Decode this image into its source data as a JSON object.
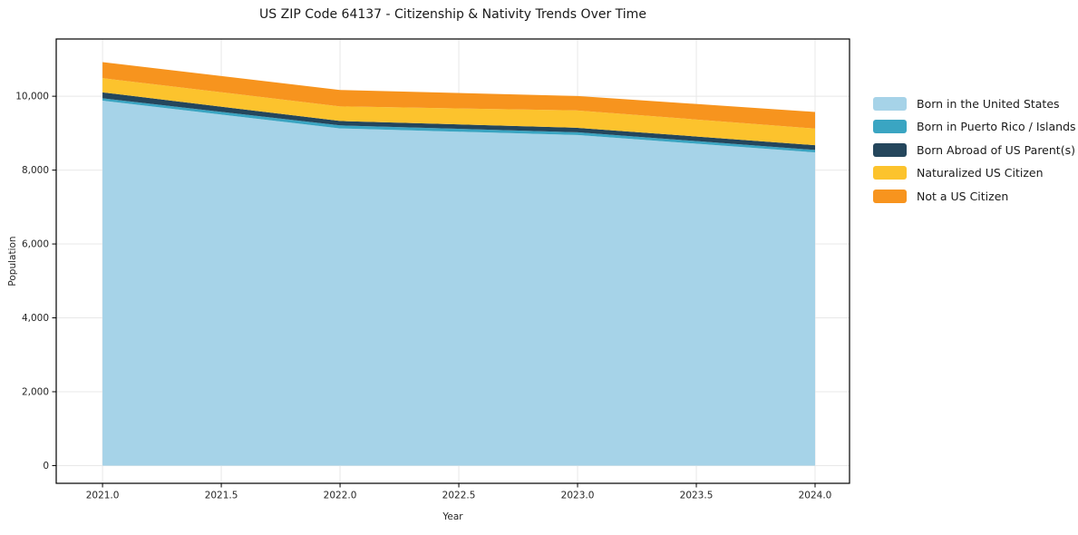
{
  "figure": {
    "background_color": "#ffffff",
    "text_color": "#1a1a1a",
    "grid_color": "#e8e8e8",
    "spine_color": "#000000"
  },
  "chart_data": {
    "type": "area",
    "stacked": true,
    "title": "US ZIP Code 64137 - Citizenship & Nativity Trends Over Time",
    "xlabel": "Year",
    "ylabel": "Population",
    "x": [
      2021,
      2022,
      2023,
      2024
    ],
    "series": [
      {
        "name": "Born in the United States",
        "color": "#a6d3e8",
        "values": [
          9880,
          9130,
          8950,
          8480
        ]
      },
      {
        "name": "Born in Puerto Rico / Islands",
        "color": "#3aa5c2",
        "values": [
          65,
          80,
          75,
          65
        ]
      },
      {
        "name": "Born Abroad of US Parent(s)",
        "color": "#24465c",
        "values": [
          160,
          120,
          120,
          130
        ]
      },
      {
        "name": "Naturalized US Citizen",
        "color": "#fcc32d",
        "values": [
          385,
          395,
          470,
          450
        ]
      },
      {
        "name": "Not a US Citizen",
        "color": "#f7941e",
        "values": [
          435,
          445,
          390,
          450
        ]
      }
    ],
    "stack_totals": [
      10925,
      10170,
      10005,
      9575
    ],
    "x_ticks": [
      "2021.0",
      "2021.5",
      "2022.0",
      "2022.5",
      "2023.0",
      "2023.5",
      "2024.0"
    ],
    "x_tick_values": [
      2021.0,
      2021.5,
      2022.0,
      2022.5,
      2023.0,
      2023.5,
      2024.0
    ],
    "y_ticks": [
      "0",
      "2,000",
      "4,000",
      "6,000",
      "8,000",
      "10,000"
    ],
    "y_tick_values": [
      0,
      2000,
      4000,
      6000,
      8000,
      10000
    ],
    "xlim": [
      2020.805,
      2024.145
    ],
    "ylim": [
      -480,
      11550
    ],
    "grid": true,
    "legend_position": "right-outside"
  }
}
